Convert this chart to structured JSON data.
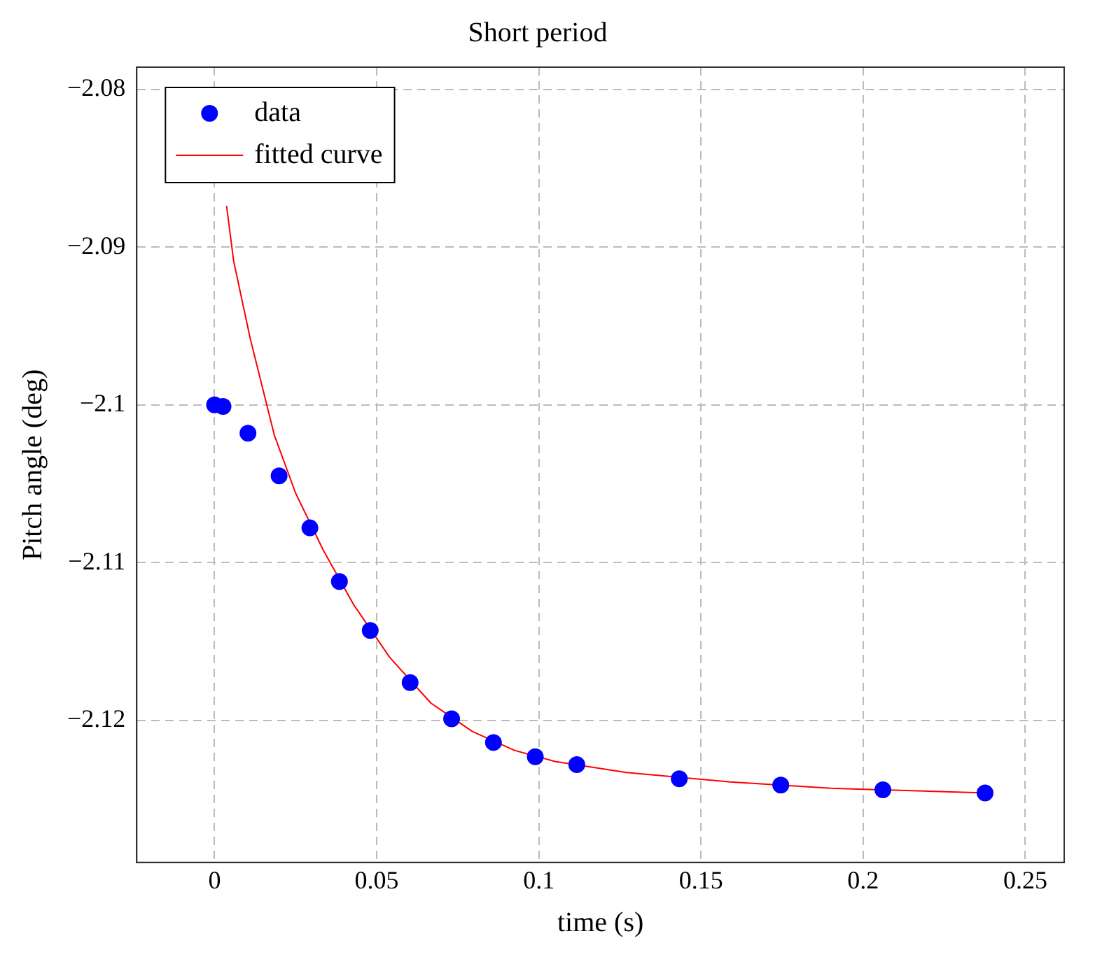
{
  "chart_data": {
    "type": "scatter",
    "title": "Short period",
    "xlabel": "time (s)",
    "ylabel": "Pitch angle (deg)",
    "xlim": [
      -0.024,
      0.262
    ],
    "xticks": [
      0,
      0.05,
      0.1,
      0.15,
      0.2,
      0.25
    ],
    "ylim": [
      -2.129,
      -2.0786
    ],
    "yticks": [
      {
        "value": -2.08,
        "label": "−2.08"
      },
      {
        "value": -2.09,
        "label": "−2.09"
      },
      {
        "value": -2.1,
        "label": "−2.1"
      },
      {
        "value": -2.11,
        "label": "−2.11"
      },
      {
        "value": -2.12,
        "label": "−2.12"
      }
    ],
    "grid": true,
    "legend": "top left",
    "series": [
      {
        "name": "data",
        "type": "scatter",
        "color": "#0000ff",
        "marker": "circle",
        "x": [
          0,
          0.0026,
          0.0103,
          0.0199,
          0.0294,
          0.0385,
          0.048,
          0.0603,
          0.0731,
          0.086,
          0.0989,
          0.1117,
          0.1433,
          0.1746,
          0.2061,
          0.2376
        ],
        "values": [
          -2.1,
          -2.1001,
          -2.1018,
          -2.1045,
          -2.1078,
          -2.1112,
          -2.1143,
          -2.1176,
          -2.1199,
          -2.1214,
          -2.1223,
          -2.1228,
          -2.1237,
          -2.1241,
          -2.1244,
          -2.1246
        ]
      },
      {
        "name": "fitted curve",
        "type": "line",
        "color": "#ff0000",
        "marker": "none",
        "x": [
          0.0037,
          0.0059,
          0.011,
          0.0184,
          0.025,
          0.0335,
          0.043,
          0.054,
          0.0667,
          0.0795,
          0.0925,
          0.105,
          0.127,
          0.159,
          0.19,
          0.222,
          0.2376
        ],
        "values": [
          -2.0874,
          -2.0909,
          -2.0958,
          -2.1019,
          -2.1056,
          -2.1092,
          -2.1127,
          -2.116,
          -2.1189,
          -2.1207,
          -2.1219,
          -2.1226,
          -2.1233,
          -2.1239,
          -2.1243,
          -2.1245,
          -2.1246
        ]
      }
    ]
  }
}
